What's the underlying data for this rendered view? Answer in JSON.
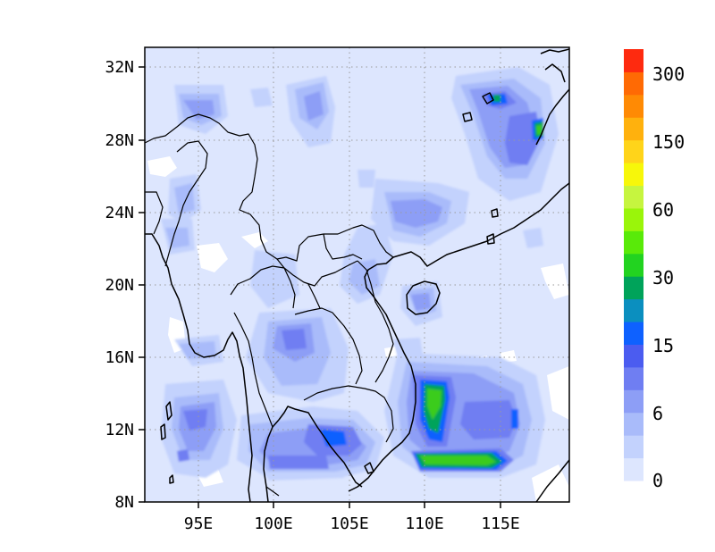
{
  "map": {
    "x_ticks": [
      "95E",
      "100E",
      "105E",
      "110E",
      "115E"
    ],
    "y_ticks": [
      "8N",
      "12N",
      "16N",
      "20N",
      "24N",
      "28N",
      "32N"
    ],
    "grid": true,
    "colors": {
      "background_level": "#dde6fe",
      "level_2": "#c3d2fd",
      "level_3": "#a9bbfa",
      "level_4": "#8d9ef6",
      "level_5": "#6f7ef2",
      "level_6": "#0e61ff",
      "level_7": "#00a35a",
      "level_8": "#3bcc1a"
    }
  },
  "colorbar": {
    "labels": [
      "0",
      "6",
      "15",
      "30",
      "60",
      "150",
      "300"
    ],
    "colors": [
      "#dde6fe",
      "#c3d2fd",
      "#a9bbfa",
      "#8d9ef6",
      "#6f7ef2",
      "#4b5cf0",
      "#0e61ff",
      "#0b8fbf",
      "#00a35a",
      "#22d320",
      "#59ea09",
      "#9af50a",
      "#c6f53f",
      "#f7f70a",
      "#ffd41a",
      "#ffb10d",
      "#ff8a04",
      "#ff6a04",
      "#fe2a0f"
    ]
  }
}
